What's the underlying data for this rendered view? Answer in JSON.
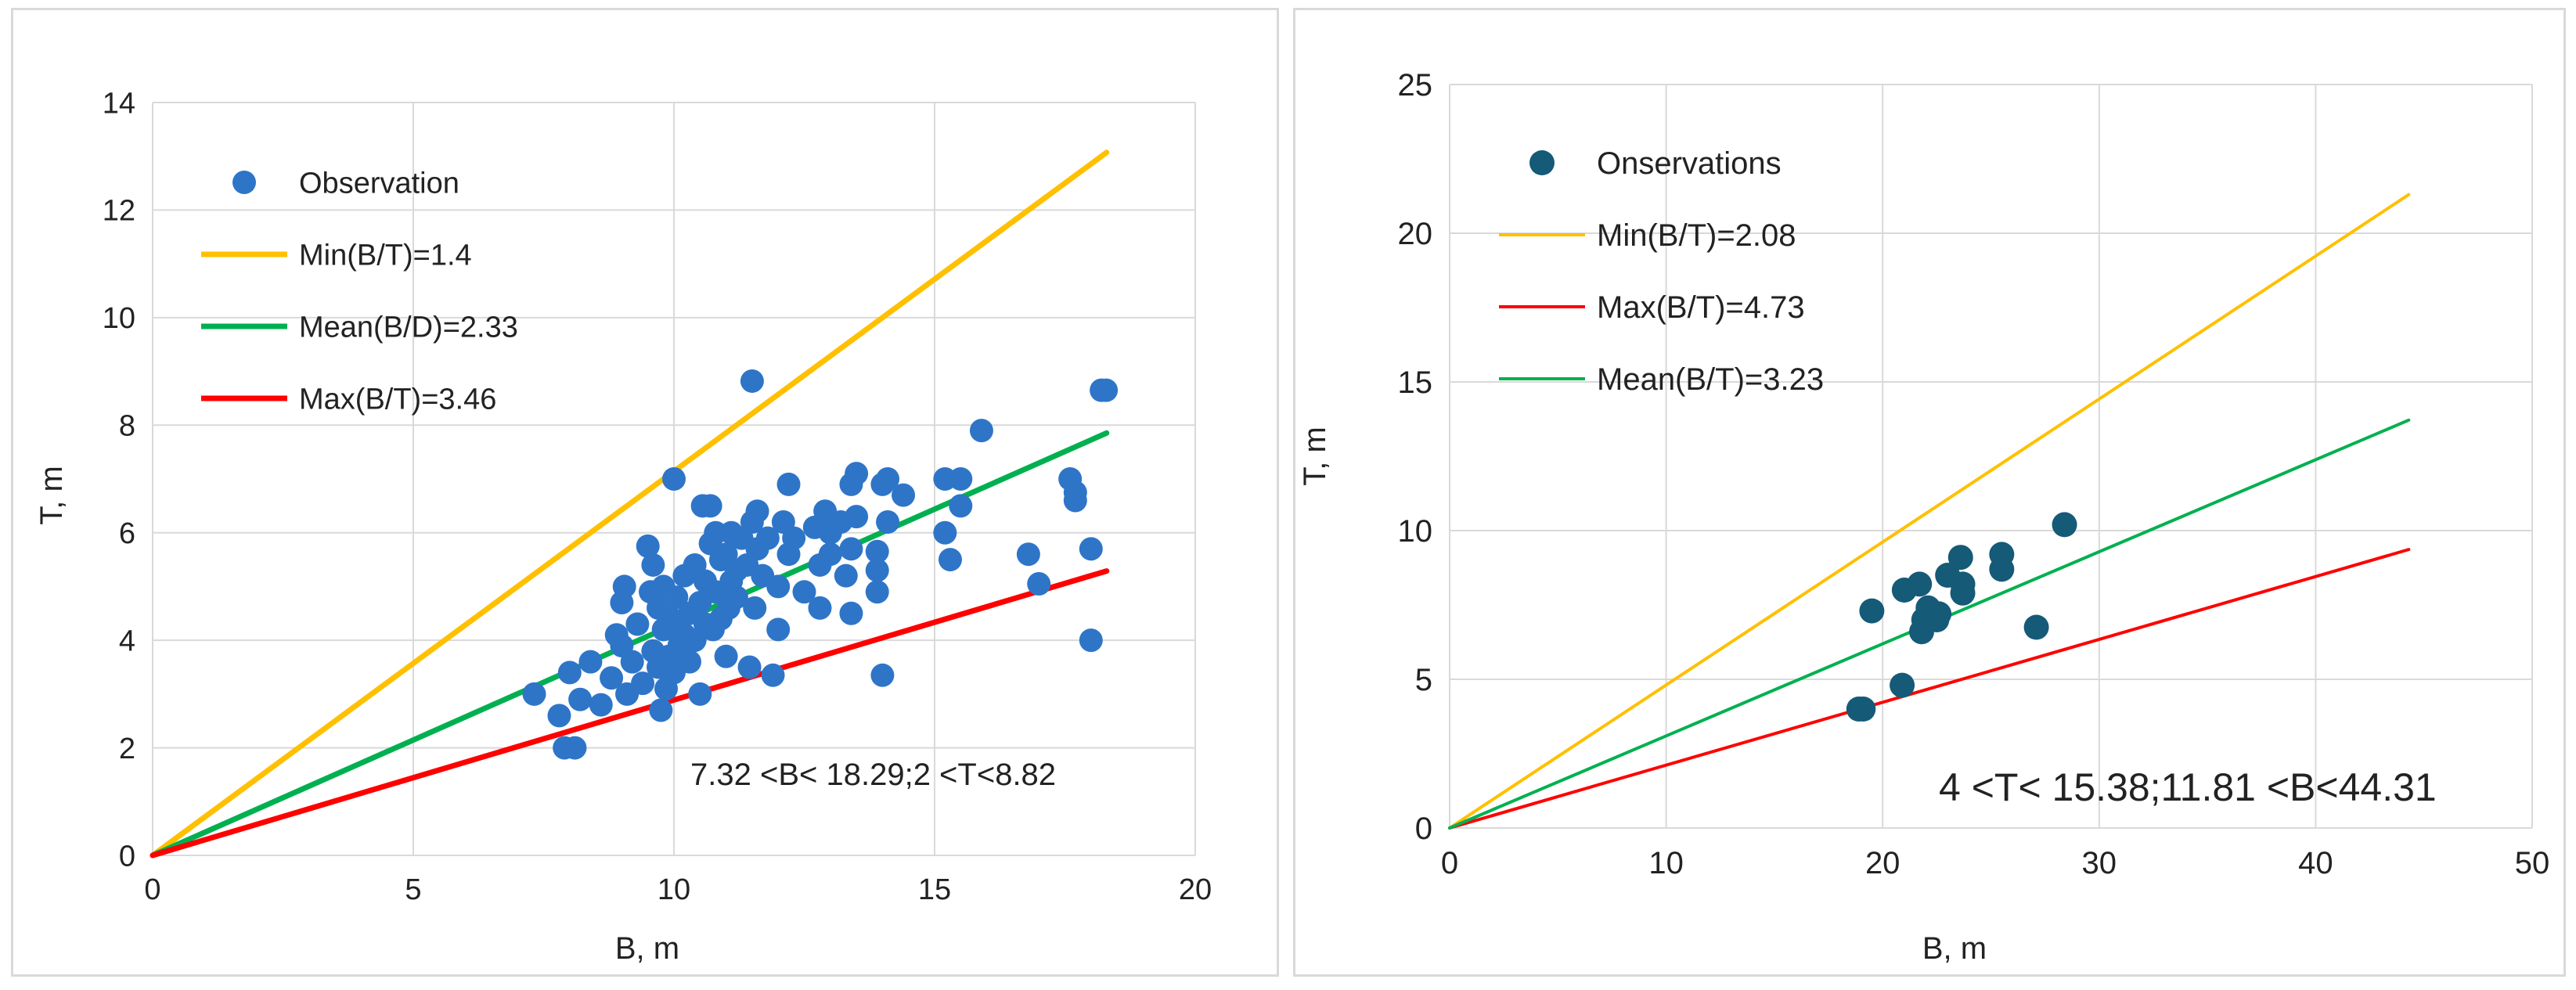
{
  "chart_data": [
    {
      "type": "scatter",
      "xlabel": "B, m",
      "ylabel": "T, m",
      "xlim": [
        0,
        20
      ],
      "ylim": [
        0,
        14
      ],
      "xticks": [
        "0",
        "5",
        "10",
        "15",
        "20"
      ],
      "yticks": [
        "0",
        "2",
        "4",
        "6",
        "8",
        "10",
        "12",
        "14"
      ],
      "grid": true,
      "legend_position": "top-left",
      "colors": {
        "points": "#2e75c8",
        "min": "#ffc000",
        "mean": "#00b050",
        "max": "#ff0000",
        "grid": "#d9d9d9"
      },
      "points_series": {
        "name": "Observation",
        "points": [
          [
            7.32,
            3.0
          ],
          [
            7.8,
            2.6
          ],
          [
            7.9,
            2.0
          ],
          [
            8.0,
            3.4
          ],
          [
            8.1,
            2.0
          ],
          [
            8.2,
            2.9
          ],
          [
            8.4,
            3.6
          ],
          [
            8.6,
            2.8
          ],
          [
            8.8,
            3.3
          ],
          [
            8.9,
            4.1
          ],
          [
            9.0,
            4.7
          ],
          [
            9.0,
            3.9
          ],
          [
            9.05,
            5.0
          ],
          [
            9.1,
            3.0
          ],
          [
            9.2,
            3.6
          ],
          [
            9.3,
            4.3
          ],
          [
            9.4,
            3.2
          ],
          [
            9.5,
            5.75
          ],
          [
            9.55,
            4.9
          ],
          [
            9.6,
            3.8
          ],
          [
            9.6,
            5.4
          ],
          [
            9.7,
            3.5
          ],
          [
            9.7,
            4.6
          ],
          [
            9.75,
            2.7
          ],
          [
            9.8,
            4.2
          ],
          [
            9.8,
            5.0
          ],
          [
            9.85,
            3.1
          ],
          [
            9.9,
            3.7
          ],
          [
            9.95,
            4.4
          ],
          [
            10.0,
            7.0
          ],
          [
            10.0,
            3.4
          ],
          [
            10.05,
            4.8
          ],
          [
            10.1,
            3.9
          ],
          [
            10.2,
            4.1
          ],
          [
            10.2,
            5.2
          ],
          [
            10.3,
            3.6
          ],
          [
            10.3,
            4.5
          ],
          [
            10.4,
            4.0
          ],
          [
            10.4,
            5.4
          ],
          [
            10.5,
            3.0
          ],
          [
            10.5,
            4.7
          ],
          [
            10.55,
            6.5
          ],
          [
            10.6,
            5.1
          ],
          [
            10.6,
            4.3
          ],
          [
            10.7,
            5.8
          ],
          [
            10.7,
            6.5
          ],
          [
            10.75,
            4.2
          ],
          [
            10.8,
            4.9
          ],
          [
            10.8,
            6.0
          ],
          [
            10.9,
            5.5
          ],
          [
            10.9,
            4.4
          ],
          [
            11.0,
            3.7
          ],
          [
            11.0,
            5.6
          ],
          [
            11.05,
            4.6
          ],
          [
            11.1,
            5.1
          ],
          [
            11.1,
            6.0
          ],
          [
            11.2,
            5.3
          ],
          [
            11.2,
            4.8
          ],
          [
            11.3,
            5.9
          ],
          [
            11.4,
            5.4
          ],
          [
            11.45,
            3.5
          ],
          [
            11.5,
            8.82
          ],
          [
            11.5,
            6.2
          ],
          [
            11.55,
            4.6
          ],
          [
            11.6,
            5.7
          ],
          [
            11.6,
            6.4
          ],
          [
            11.7,
            5.2
          ],
          [
            11.8,
            5.9
          ],
          [
            11.9,
            3.35
          ],
          [
            12.0,
            4.2
          ],
          [
            12.0,
            5.0
          ],
          [
            12.1,
            6.2
          ],
          [
            12.2,
            6.9
          ],
          [
            12.2,
            5.6
          ],
          [
            12.3,
            5.9
          ],
          [
            12.5,
            4.9
          ],
          [
            12.7,
            6.1
          ],
          [
            12.8,
            5.4
          ],
          [
            12.8,
            4.6
          ],
          [
            12.9,
            6.4
          ],
          [
            13.0,
            5.6
          ],
          [
            13.0,
            6.0
          ],
          [
            13.2,
            6.2
          ],
          [
            13.3,
            5.2
          ],
          [
            13.4,
            6.9
          ],
          [
            13.4,
            4.5
          ],
          [
            13.4,
            5.7
          ],
          [
            13.5,
            7.1
          ],
          [
            13.5,
            6.3
          ],
          [
            13.9,
            4.9
          ],
          [
            13.9,
            5.3
          ],
          [
            13.9,
            5.65
          ],
          [
            14.0,
            6.9
          ],
          [
            14.0,
            3.35
          ],
          [
            14.1,
            7.0
          ],
          [
            14.1,
            6.2
          ],
          [
            14.4,
            6.7
          ],
          [
            15.2,
            7.0
          ],
          [
            15.2,
            6.0
          ],
          [
            15.3,
            5.5
          ],
          [
            15.5,
            6.5
          ],
          [
            15.5,
            7.0
          ],
          [
            15.9,
            7.9
          ],
          [
            16.8,
            5.6
          ],
          [
            17.0,
            5.05
          ],
          [
            17.6,
            7.0
          ],
          [
            17.7,
            6.6
          ],
          [
            17.7,
            6.75
          ],
          [
            18.0,
            5.7
          ],
          [
            18.0,
            4.0
          ],
          [
            18.2,
            8.65
          ],
          [
            18.29,
            8.65
          ]
        ]
      },
      "line_series": [
        {
          "name": "Min(B/T)=1.4",
          "slope": 0.7143,
          "color": "#ffc000",
          "x": [
            0,
            18.3
          ]
        },
        {
          "name": "Mean(B/D)=2.33",
          "slope": 0.4292,
          "color": "#00b050",
          "x": [
            0,
            18.3
          ]
        },
        {
          "name": "Max(B/T)=3.46",
          "slope": 0.289,
          "color": "#ff0000",
          "x": [
            0,
            18.3
          ]
        }
      ],
      "annotation": "7.32 <B< 18.29;2  <T<8.82"
    },
    {
      "type": "scatter",
      "xlabel": "B, m",
      "ylabel": "T, m",
      "xlim": [
        0,
        50
      ],
      "ylim": [
        0,
        25
      ],
      "xticks": [
        "0",
        "10",
        "20",
        "30",
        "40",
        "50"
      ],
      "yticks": [
        "0",
        "5",
        "10",
        "15",
        "20",
        "25"
      ],
      "grid": true,
      "legend_position": "top-left",
      "colors": {
        "points": "#155a77",
        "min": "#ffc000",
        "mean": "#00b050",
        "max": "#ff0000",
        "grid": "#d9d9d9"
      },
      "points_series": {
        "name": "Onservations",
        "points": [
          [
            18.9,
            4.0
          ],
          [
            19.1,
            4.0
          ],
          [
            19.5,
            7.3
          ],
          [
            20.9,
            4.8
          ],
          [
            21.0,
            8.0
          ],
          [
            21.7,
            8.2
          ],
          [
            21.8,
            6.6
          ],
          [
            21.9,
            7.0
          ],
          [
            22.1,
            7.4
          ],
          [
            22.3,
            7.1
          ],
          [
            22.5,
            7.0
          ],
          [
            22.6,
            7.2
          ],
          [
            23.0,
            8.5
          ],
          [
            23.6,
            9.1
          ],
          [
            23.7,
            8.2
          ],
          [
            23.7,
            7.9
          ],
          [
            25.5,
            9.2
          ],
          [
            25.5,
            8.7
          ],
          [
            27.1,
            6.75
          ],
          [
            28.4,
            10.2
          ]
        ]
      },
      "line_series": [
        {
          "name": "Min(B/T)=2.08",
          "slope": 0.4808,
          "color": "#ffc000",
          "x": [
            0,
            44.3
          ]
        },
        {
          "name": "Max(B/T)=4.73",
          "slope": 0.2114,
          "color": "#ff0000",
          "x": [
            0,
            44.3
          ]
        },
        {
          "name": "Mean(B/T)=3.23",
          "slope": 0.3096,
          "color": "#00b050",
          "x": [
            0,
            44.3
          ]
        }
      ],
      "annotation": "4 <T< 15.38;11.81  <B<44.31"
    }
  ]
}
